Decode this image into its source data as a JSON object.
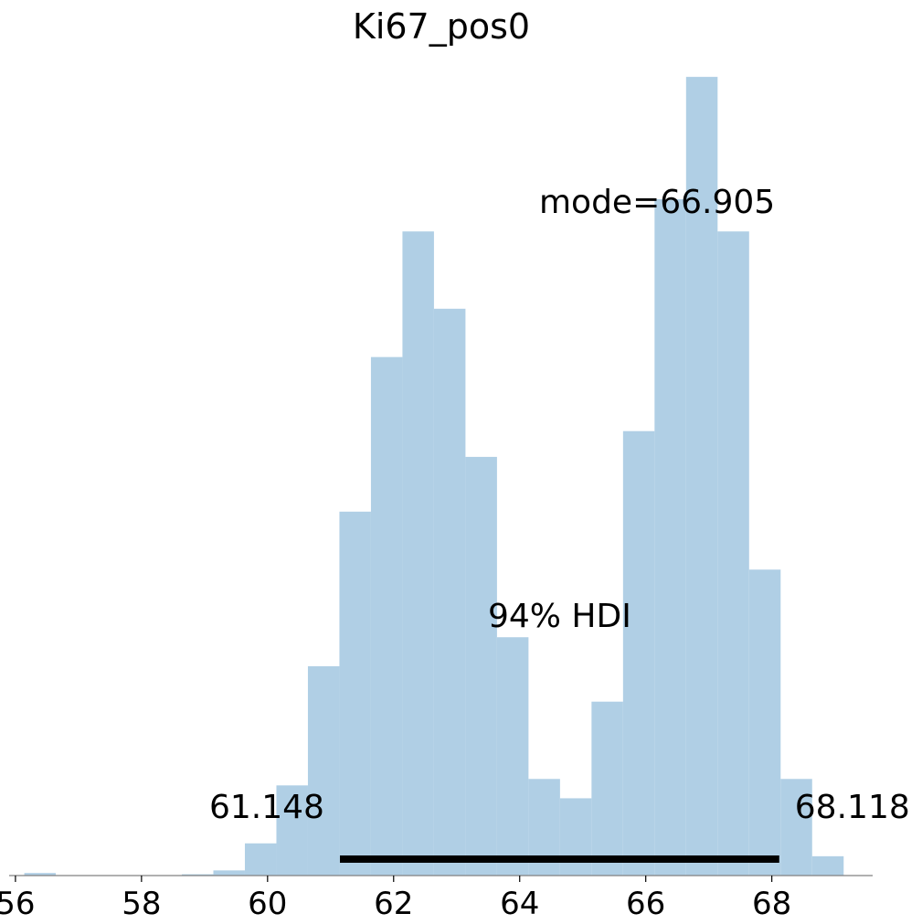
{
  "chart_data": {
    "type": "bar",
    "title": "Ki67_pos0",
    "xlabel": "",
    "ylabel": "",
    "xlim": [
      55.9,
      69.6
    ],
    "ylim": [
      0,
      1260
    ],
    "grid": false,
    "bar_color": "#b0cfe5",
    "hdi_color": "#000000",
    "x_ticks": [
      {
        "value": 56,
        "label": "56"
      },
      {
        "value": 58,
        "label": "58"
      },
      {
        "value": 60,
        "label": "60"
      },
      {
        "value": 62,
        "label": "62"
      },
      {
        "value": 64,
        "label": "64"
      },
      {
        "value": 66,
        "label": "66"
      },
      {
        "value": 68,
        "label": "68"
      }
    ],
    "bins": [
      {
        "start": 56.14,
        "end": 56.64,
        "count": 4
      },
      {
        "start": 58.64,
        "end": 59.14,
        "count": 2
      },
      {
        "start": 59.14,
        "end": 59.64,
        "count": 8
      },
      {
        "start": 59.64,
        "end": 60.14,
        "count": 50
      },
      {
        "start": 60.14,
        "end": 60.64,
        "count": 140
      },
      {
        "start": 60.64,
        "end": 61.14,
        "count": 325
      },
      {
        "start": 61.14,
        "end": 61.64,
        "count": 565
      },
      {
        "start": 61.64,
        "end": 62.14,
        "count": 805
      },
      {
        "start": 62.14,
        "end": 62.64,
        "count": 1000
      },
      {
        "start": 62.64,
        "end": 63.14,
        "count": 880
      },
      {
        "start": 63.14,
        "end": 63.64,
        "count": 650
      },
      {
        "start": 63.64,
        "end": 64.14,
        "count": 370
      },
      {
        "start": 64.14,
        "end": 64.64,
        "count": 150
      },
      {
        "start": 64.64,
        "end": 65.14,
        "count": 120
      },
      {
        "start": 65.14,
        "end": 65.64,
        "count": 270
      },
      {
        "start": 65.64,
        "end": 66.14,
        "count": 690
      },
      {
        "start": 66.14,
        "end": 66.64,
        "count": 1050
      },
      {
        "start": 66.64,
        "end": 67.14,
        "count": 1240
      },
      {
        "start": 67.14,
        "end": 67.64,
        "count": 1000
      },
      {
        "start": 67.64,
        "end": 68.14,
        "count": 475
      },
      {
        "start": 68.14,
        "end": 68.64,
        "count": 150
      },
      {
        "start": 68.64,
        "end": 69.14,
        "count": 30
      }
    ],
    "hdi": {
      "label": "94% HDI",
      "low": 61.148,
      "high": 68.118,
      "low_label": "61.148",
      "high_label": "68.118"
    },
    "mode": {
      "value": 66.905,
      "label": "mode=66.905"
    }
  }
}
